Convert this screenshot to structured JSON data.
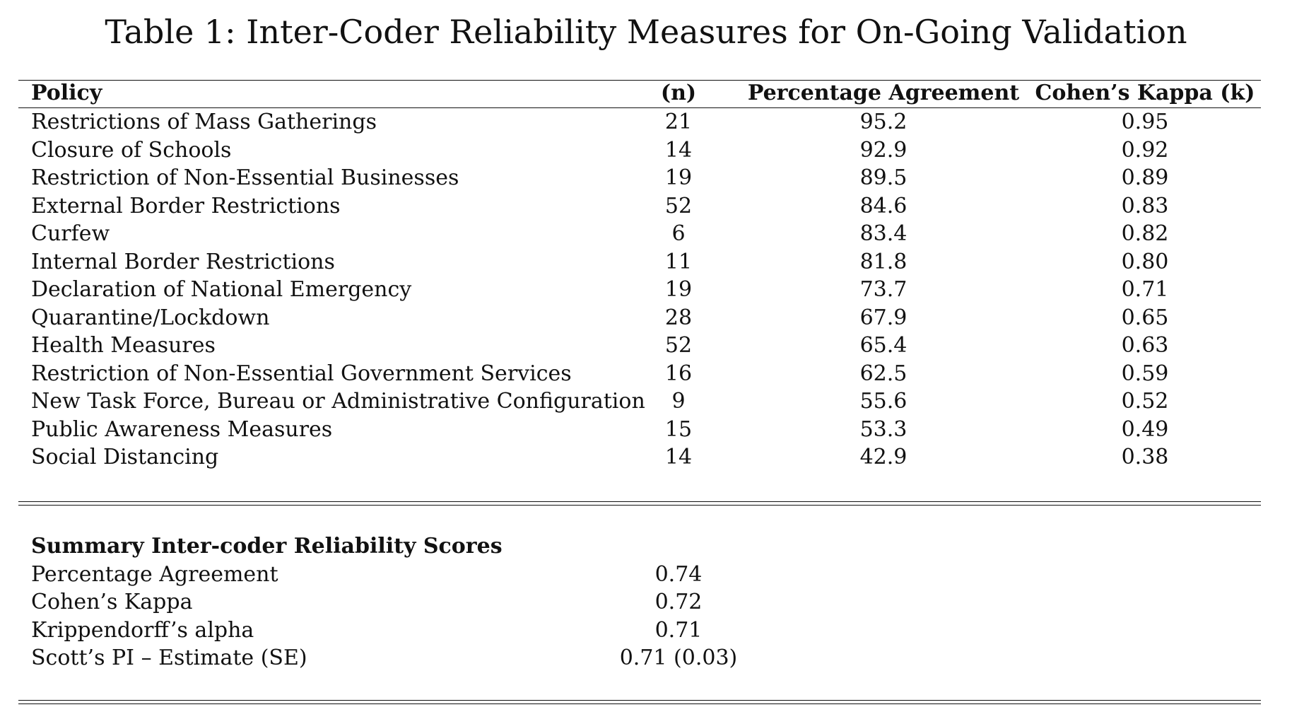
{
  "title": "Table 1: Inter-Coder Reliability Measures for On-Going Validation",
  "table": {
    "headers": {
      "policy": "Policy",
      "n": "(n)",
      "percentage_agreement": "Percentage Agreement",
      "cohens_kappa": "Cohen’s Kappa (k)"
    },
    "rows": [
      {
        "policy": "Restrictions of Mass Gatherings",
        "n": "21",
        "pa": "95.2",
        "ck": "0.95"
      },
      {
        "policy": "Closure of Schools",
        "n": "14",
        "pa": "92.9",
        "ck": "0.92"
      },
      {
        "policy": "Restriction of Non-Essential Businesses",
        "n": "19",
        "pa": "89.5",
        "ck": "0.89"
      },
      {
        "policy": "External Border Restrictions",
        "n": "52",
        "pa": "84.6",
        "ck": "0.83"
      },
      {
        "policy": "Curfew",
        "n": "6",
        "pa": "83.4",
        "ck": "0.82"
      },
      {
        "policy": "Internal Border Restrictions",
        "n": "11",
        "pa": "81.8",
        "ck": "0.80"
      },
      {
        "policy": "Declaration of National Emergency",
        "n": "19",
        "pa": "73.7",
        "ck": "0.71"
      },
      {
        "policy": "Quarantine/Lockdown",
        "n": "28",
        "pa": "67.9",
        "ck": "0.65"
      },
      {
        "policy": "Health Measures",
        "n": "52",
        "pa": "65.4",
        "ck": "0.63"
      },
      {
        "policy": "Restriction of Non-Essential Government Services",
        "n": "16",
        "pa": "62.5",
        "ck": "0.59"
      },
      {
        "policy": "New Task Force, Bureau or Administrative Configuration",
        "n": "9",
        "pa": "55.6",
        "ck": "0.52"
      },
      {
        "policy": "Public Awareness Measures",
        "n": "15",
        "pa": "53.3",
        "ck": "0.49"
      },
      {
        "policy": "Social Distancing",
        "n": "14",
        "pa": "42.9",
        "ck": "0.38"
      }
    ]
  },
  "summary": {
    "heading": "Summary Inter-coder Reliability Scores",
    "rows": [
      {
        "label": "Percentage Agreement",
        "value": "0.74"
      },
      {
        "label": "Cohen’s Kappa",
        "value": "0.72"
      },
      {
        "label": "Krippendorff’s alpha",
        "value": "0.71"
      },
      {
        "label": "Scott’s PI – Estimate (SE)",
        "value": "0.71 (0.03)"
      }
    ]
  }
}
